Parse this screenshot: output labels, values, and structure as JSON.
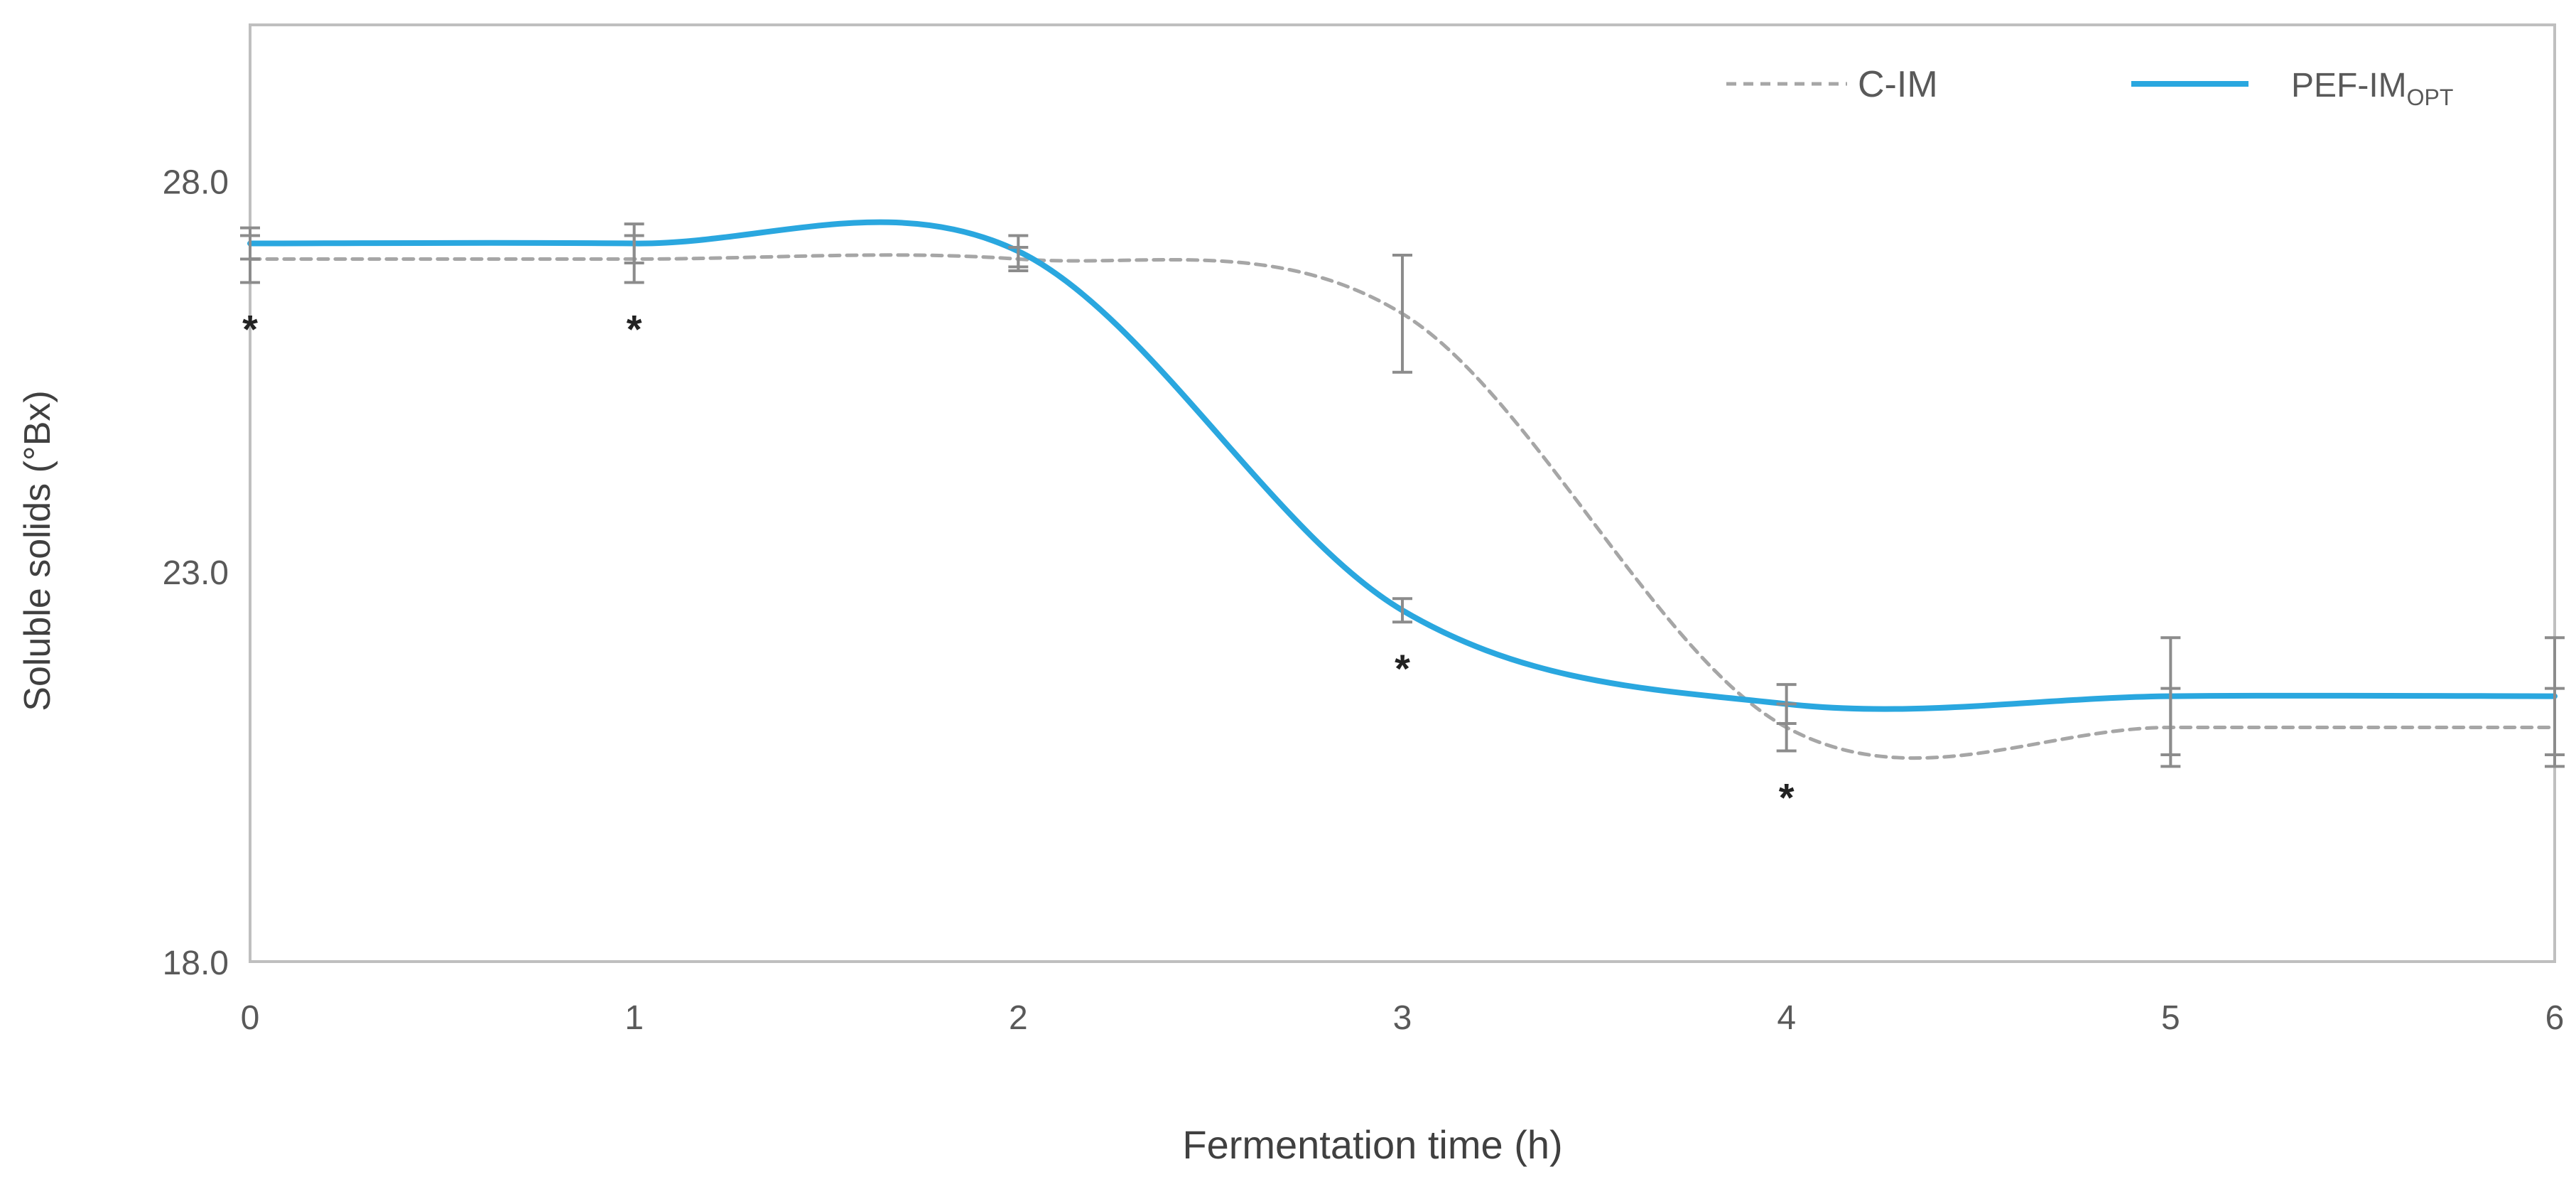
{
  "chart_data": {
    "type": "line",
    "xlabel": "Fermentation time (h)",
    "ylabel": "Soluble solids (°Bx)",
    "x": [
      0,
      1,
      2,
      3,
      4,
      5,
      6
    ],
    "xlim": [
      0,
      6
    ],
    "ylim": [
      18,
      30
    ],
    "yticks": [
      18.0,
      23.0,
      28.0
    ],
    "ytick_labels": [
      "18.0",
      "23.0",
      "28.0"
    ],
    "xtick_labels": [
      "0",
      "1",
      "2",
      "3",
      "4",
      "5",
      "6"
    ],
    "grid": false,
    "legend_position": "top-right",
    "series": [
      {
        "name": "C-IM",
        "style": "dashed",
        "color": "#a6a6a6",
        "values": [
          27.0,
          27.0,
          27.0,
          26.3,
          21.0,
          21.0,
          21.0
        ],
        "error": [
          0.3,
          0.3,
          0.15,
          0.75,
          0.3,
          0.5,
          0.5
        ]
      },
      {
        "name": "PEF-IM",
        "name_sub": "OPT",
        "style": "solid",
        "color": "#2aa7df",
        "values": [
          27.2,
          27.2,
          27.1,
          22.5,
          21.3,
          21.4,
          21.4
        ],
        "error": [
          0.2,
          0.25,
          0.2,
          0.15,
          0.25,
          0.75,
          0.75
        ]
      }
    ],
    "annotations": [
      {
        "x": 0,
        "text": "*"
      },
      {
        "x": 1,
        "text": "*"
      },
      {
        "x": 3,
        "text": "*"
      },
      {
        "x": 4,
        "text": "*"
      }
    ]
  }
}
